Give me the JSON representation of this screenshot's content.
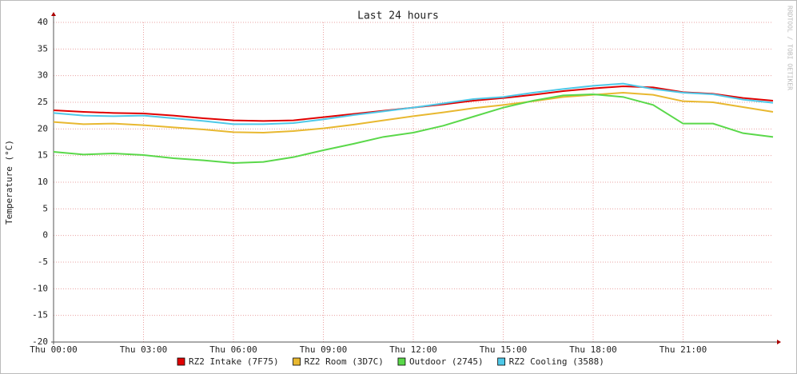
{
  "chart_data": {
    "type": "line",
    "title": "Last 24 hours",
    "y_label": "Temperature (°C)",
    "watermark": "RRDTOOL / TOBI OETIKER",
    "x": [
      0,
      1,
      2,
      3,
      4,
      5,
      6,
      7,
      8,
      9,
      10,
      11,
      12,
      13,
      14,
      15,
      16,
      17,
      18,
      19,
      20,
      21,
      22,
      23,
      24
    ],
    "xlim": [
      0,
      24
    ],
    "xticks": [
      {
        "value": 0,
        "label": "Thu 00:00"
      },
      {
        "value": 3,
        "label": "Thu 03:00"
      },
      {
        "value": 6,
        "label": "Thu 06:00"
      },
      {
        "value": 9,
        "label": "Thu 09:00"
      },
      {
        "value": 12,
        "label": "Thu 12:00"
      },
      {
        "value": 15,
        "label": "Thu 15:00"
      },
      {
        "value": 18,
        "label": "Thu 18:00"
      },
      {
        "value": 21,
        "label": "Thu 21:00"
      }
    ],
    "ylim": [
      -20,
      40
    ],
    "yticks": [
      -20,
      -15,
      -10,
      -5,
      0,
      5,
      10,
      15,
      20,
      25,
      30,
      35,
      40
    ],
    "grid": true,
    "series": [
      {
        "name": "RZ2 Intake (7F75)",
        "color": "#e00000",
        "values": [
          23.5,
          23.2,
          23,
          22.9,
          22.5,
          22,
          21.6,
          21.5,
          21.6,
          22.2,
          22.8,
          23.4,
          24,
          24.6,
          25.3,
          25.8,
          26.4,
          27.1,
          27.6,
          28,
          27.8,
          26.9,
          26.6,
          25.8,
          25.3
        ]
      },
      {
        "name": "RZ2 Room (3D7C)",
        "color": "#e8b830",
        "values": [
          21.3,
          20.9,
          21,
          20.7,
          20.3,
          19.9,
          19.4,
          19.3,
          19.6,
          20.1,
          20.8,
          21.6,
          22.4,
          23.1,
          23.9,
          24.5,
          25.2,
          26,
          26.4,
          26.8,
          26.4,
          25.2,
          25,
          24.1,
          23.2
        ]
      },
      {
        "name": "Outdoor (2745)",
        "color": "#5ad84a",
        "values": [
          15.7,
          15.2,
          15.4,
          15.1,
          14.5,
          14.1,
          13.6,
          13.8,
          14.7,
          16,
          17.2,
          18.5,
          19.3,
          20.6,
          22.3,
          24,
          25.3,
          26.3,
          26.5,
          26,
          24.5,
          21,
          21,
          19.2,
          18.5
        ]
      },
      {
        "name": "RZ2 Cooling (3588)",
        "color": "#4ec8e8",
        "values": [
          23,
          22.5,
          22.4,
          22.5,
          22,
          21.5,
          20.9,
          20.9,
          21.1,
          21.8,
          22.6,
          23.3,
          24,
          24.8,
          25.6,
          26,
          26.8,
          27.5,
          28.1,
          28.5,
          27.5,
          26.8,
          26.5,
          25.5,
          24.9
        ]
      }
    ]
  }
}
